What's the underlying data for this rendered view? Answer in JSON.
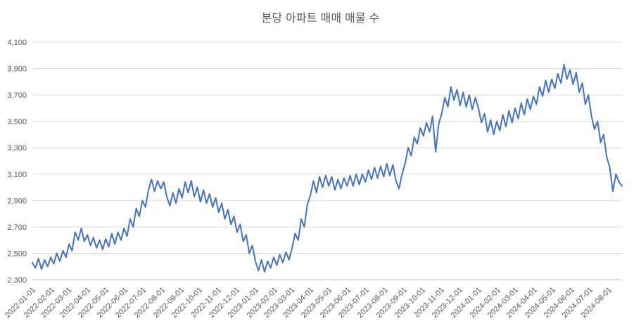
{
  "chart_data": {
    "type": "line",
    "title": "분당 아파트 매매 매물 수",
    "legend": "none",
    "grid": true,
    "series_color": "#4472C4",
    "grid_color": "#D9D9D9",
    "axis_line_color": "#BFBFBF",
    "axis_text_color": "#595959",
    "title_color": "#595959",
    "background": "#FFFFFF",
    "ylim": [
      2300,
      4100
    ],
    "y_tick_step": 200,
    "y_tick_labels": [
      "2,300",
      "2,500",
      "2,700",
      "2,900",
      "3,100",
      "3,300",
      "3,500",
      "3,700",
      "3,900",
      "4,100"
    ],
    "x_max_day": 965,
    "x_step_days": 5,
    "x_ticks": [
      {
        "label": "2022-01-01",
        "day": 0
      },
      {
        "label": "2022-02-01",
        "day": 31
      },
      {
        "label": "2022-03-01",
        "day": 59
      },
      {
        "label": "2022-04-01",
        "day": 90
      },
      {
        "label": "2022-05-01",
        "day": 120
      },
      {
        "label": "2022-06-01",
        "day": 151
      },
      {
        "label": "2022-07-01",
        "day": 181
      },
      {
        "label": "2022-08-01",
        "day": 212
      },
      {
        "label": "2022-09-01",
        "day": 243
      },
      {
        "label": "2022-10-01",
        "day": 273
      },
      {
        "label": "2022-11-01",
        "day": 304
      },
      {
        "label": "2022-12-01",
        "day": 334
      },
      {
        "label": "2023-01-01",
        "day": 365
      },
      {
        "label": "2023-02-01",
        "day": 396
      },
      {
        "label": "2023-03-01",
        "day": 424
      },
      {
        "label": "2023-04-01",
        "day": 455
      },
      {
        "label": "2023-05-01",
        "day": 485
      },
      {
        "label": "2023-06-01",
        "day": 516
      },
      {
        "label": "2023-07-01",
        "day": 546
      },
      {
        "label": "2023-08-01",
        "day": 577
      },
      {
        "label": "2023-09-01",
        "day": 608
      },
      {
        "label": "2023-10-01",
        "day": 638
      },
      {
        "label": "2023-11-01",
        "day": 669
      },
      {
        "label": "2023-12-01",
        "day": 699
      },
      {
        "label": "2024-01-01",
        "day": 730
      },
      {
        "label": "2024-02-01",
        "day": 761
      },
      {
        "label": "2024-03-01",
        "day": 790
      },
      {
        "label": "2024-04-01",
        "day": 821
      },
      {
        "label": "2024-05-01",
        "day": 851
      },
      {
        "label": "2024-06-01",
        "day": 882
      },
      {
        "label": "2024-07-01",
        "day": 912
      },
      {
        "label": "2024-08-01",
        "day": 943
      }
    ],
    "values": [
      2430,
      2390,
      2460,
      2380,
      2450,
      2400,
      2470,
      2420,
      2500,
      2440,
      2520,
      2470,
      2570,
      2520,
      2660,
      2600,
      2690,
      2590,
      2640,
      2560,
      2620,
      2540,
      2600,
      2530,
      2610,
      2550,
      2650,
      2570,
      2660,
      2600,
      2690,
      2630,
      2760,
      2700,
      2840,
      2780,
      2900,
      2850,
      2980,
      3060,
      2970,
      3050,
      2990,
      3040,
      2930,
      2860,
      2960,
      2880,
      2990,
      2920,
      3040,
      2960,
      3050,
      2930,
      3000,
      2890,
      2980,
      2880,
      2950,
      2850,
      2920,
      2810,
      2880,
      2760,
      2830,
      2720,
      2780,
      2660,
      2720,
      2590,
      2640,
      2500,
      2560,
      2440,
      2370,
      2450,
      2360,
      2440,
      2390,
      2470,
      2410,
      2490,
      2430,
      2510,
      2450,
      2540,
      2650,
      2600,
      2760,
      2700,
      2870,
      2940,
      3050,
      2960,
      3080,
      3000,
      3090,
      3010,
      3080,
      2980,
      3060,
      2990,
      3070,
      3010,
      3090,
      3010,
      3100,
      3020,
      3100,
      3040,
      3130,
      3060,
      3150,
      3070,
      3160,
      3080,
      3180,
      3090,
      3170,
      3050,
      2990,
      3100,
      3180,
      3300,
      3240,
      3380,
      3330,
      3450,
      3390,
      3490,
      3420,
      3540,
      3270,
      3480,
      3560,
      3680,
      3610,
      3760,
      3660,
      3740,
      3620,
      3720,
      3610,
      3700,
      3590,
      3680,
      3600,
      3490,
      3560,
      3420,
      3510,
      3400,
      3500,
      3430,
      3550,
      3460,
      3580,
      3490,
      3600,
      3520,
      3640,
      3550,
      3670,
      3590,
      3690,
      3630,
      3760,
      3690,
      3810,
      3720,
      3820,
      3750,
      3860,
      3790,
      3930,
      3820,
      3890,
      3780,
      3870,
      3720,
      3790,
      3630,
      3700,
      3540,
      3440,
      3500,
      3340,
      3400,
      3230,
      3150,
      2970,
      3100,
      3040,
      3010
    ]
  }
}
